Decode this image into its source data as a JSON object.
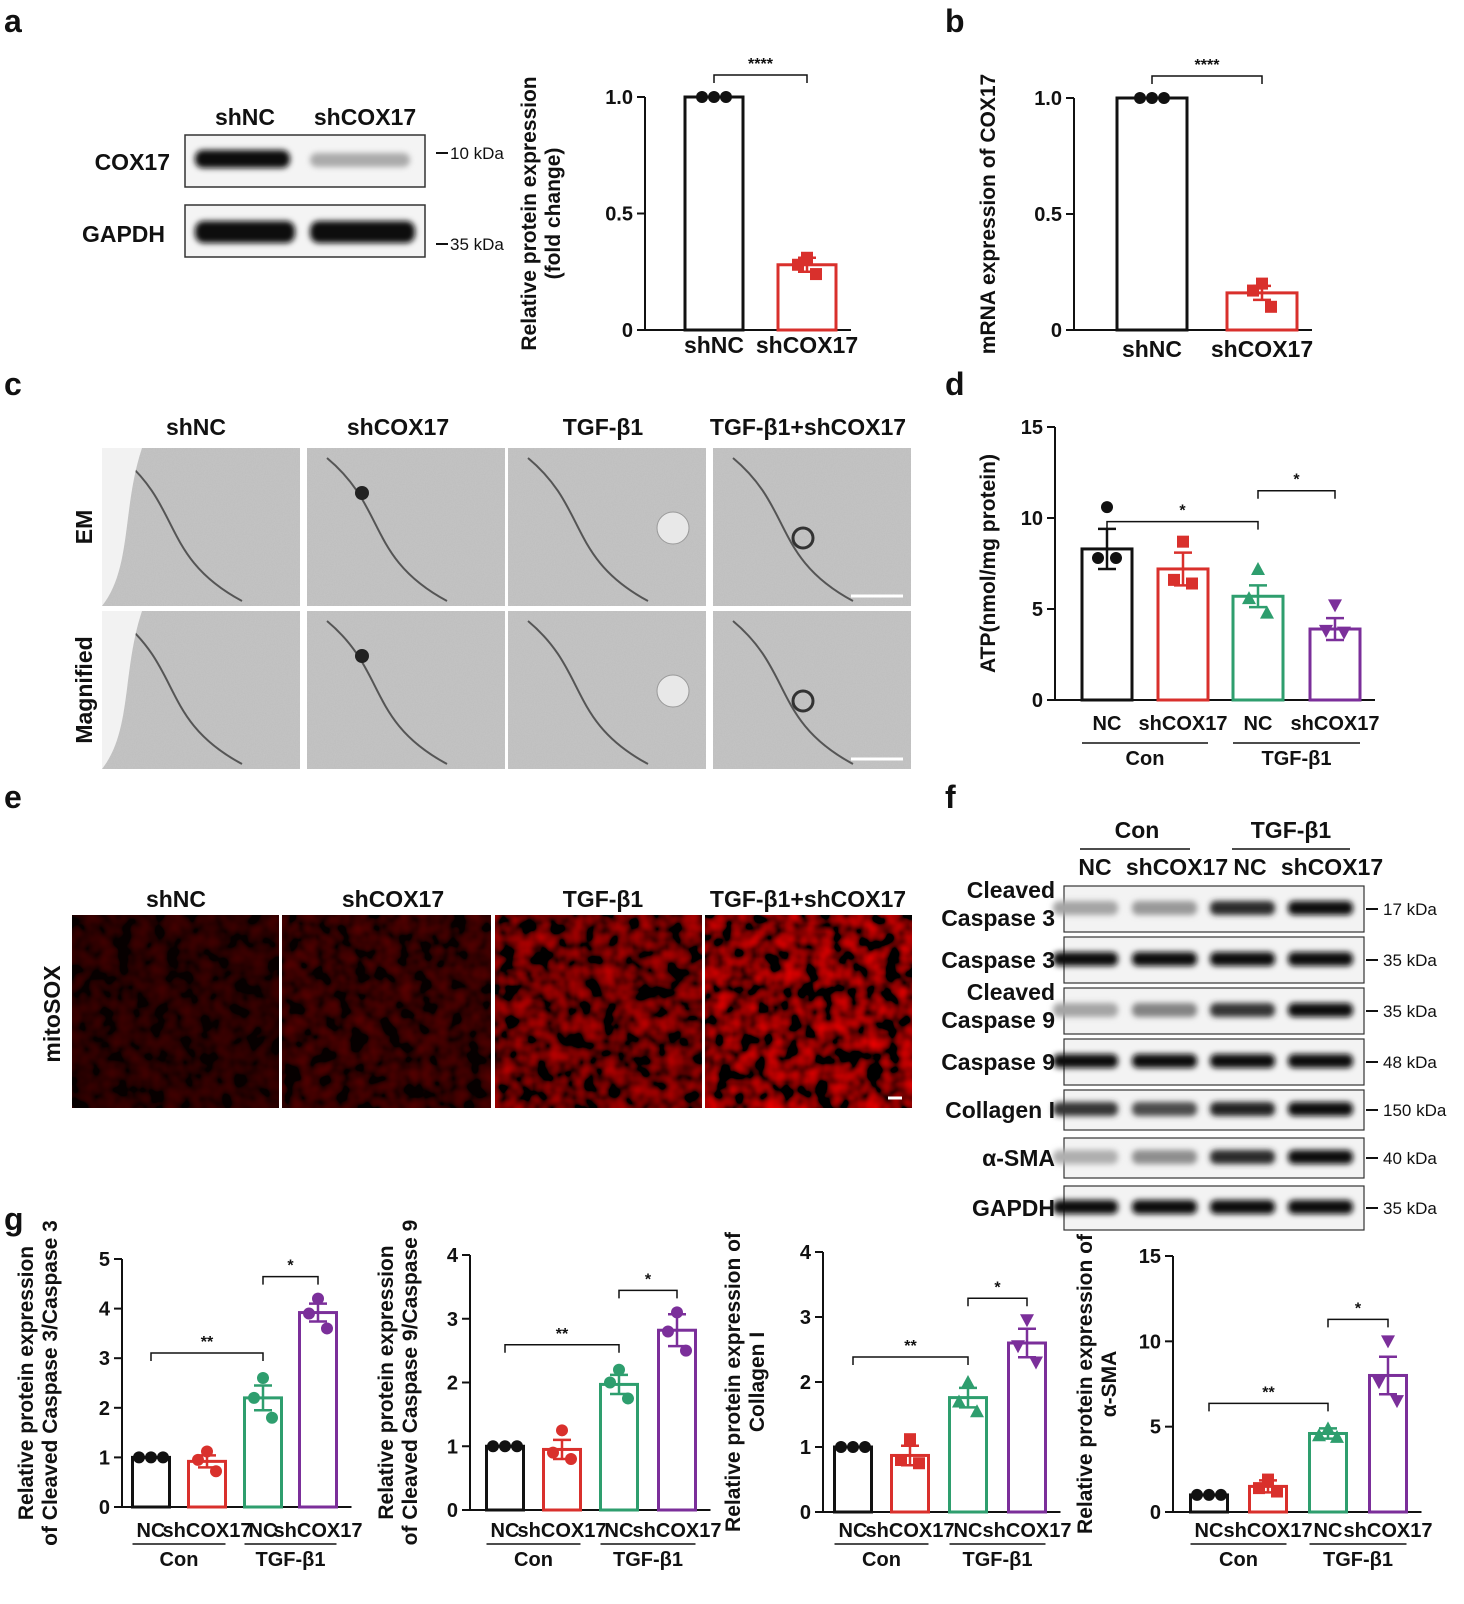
{
  "panel_labels": [
    "a",
    "b",
    "c",
    "d",
    "e",
    "f",
    "g"
  ],
  "colors": {
    "NC": "#111111",
    "shCOX17": "#d9302c",
    "TGF_NC": "#2e9e6e",
    "TGF_shCOX17": "#7b2f9a"
  },
  "panel_a": {
    "lanes": [
      "shNC",
      "shCOX17"
    ],
    "rows": [
      "COX17",
      "GAPDH"
    ],
    "markers": [
      "10 kDa",
      "35 kDa"
    ]
  },
  "panel_c": {
    "columns": [
      "shNC",
      "shCOX17",
      "TGF-β1",
      "TGF-β1+shCOX17"
    ],
    "rows": [
      "EM",
      "Magnified"
    ]
  },
  "panel_e": {
    "columns": [
      "shNC",
      "shCOX17",
      "TGF-β1",
      "TGF-β1+shCOX17"
    ],
    "row": "mitoSOX"
  },
  "panel_f": {
    "groups": [
      "Con",
      "TGF-β1"
    ],
    "lanes": [
      "NC",
      "shCOX17",
      "NC",
      "shCOX17"
    ],
    "rows": [
      {
        "label": [
          "Cleaved",
          "Caspase 3"
        ],
        "marker": "17 kDa"
      },
      {
        "label": [
          "Caspase 3"
        ],
        "marker": "35 kDa"
      },
      {
        "label": [
          "Cleaved",
          "Caspase 9"
        ],
        "marker": "35 kDa"
      },
      {
        "label": [
          "Caspase 9"
        ],
        "marker": "48 kDa"
      },
      {
        "label": [
          "Collagen I"
        ],
        "marker": "150 kDa"
      },
      {
        "label": [
          "α-SMA"
        ],
        "marker": "40 kDa"
      },
      {
        "label": [
          "GAPDH"
        ],
        "marker": "35 kDa"
      }
    ]
  },
  "chart_data": [
    {
      "id": "a",
      "type": "bar",
      "categories": [
        "shNC",
        "shCOX17"
      ],
      "values": [
        1.0,
        0.28
      ],
      "errors": [
        0.0,
        0.03
      ],
      "points": [
        [
          1.0,
          1.0,
          1.0
        ],
        [
          0.31,
          0.28,
          0.24
        ]
      ],
      "ylabel": [
        "Relative protein expression",
        "(fold change)"
      ],
      "ylim": [
        0,
        1.0
      ],
      "yticks": [
        "0",
        "0.5",
        "1.0"
      ],
      "sig": [
        {
          "pair": [
            0,
            1
          ],
          "label": "****"
        }
      ]
    },
    {
      "id": "b",
      "type": "bar",
      "categories": [
        "shNC",
        "shCOX17"
      ],
      "values": [
        1.0,
        0.16
      ],
      "errors": [
        0.0,
        0.03
      ],
      "points": [
        [
          1.0,
          1.0,
          1.0
        ],
        [
          0.2,
          0.17,
          0.1
        ]
      ],
      "ylabel": [
        "mRNA expression of COX17"
      ],
      "ylim": [
        0,
        1.0
      ],
      "yticks": [
        "0",
        "0.5",
        "1.0"
      ],
      "sig": [
        {
          "pair": [
            0,
            1
          ],
          "label": "****"
        }
      ]
    },
    {
      "id": "d",
      "type": "bar",
      "categories": [
        "NC",
        "shCOX17",
        "NC",
        "shCOX17"
      ],
      "groups": [
        "Con",
        "TGF-β1"
      ],
      "values": [
        8.3,
        7.2,
        5.7,
        3.9
      ],
      "errors": [
        1.1,
        0.9,
        0.6,
        0.6
      ],
      "points": [
        [
          10.6,
          7.8,
          7.8
        ],
        [
          8.7,
          6.6,
          6.4
        ],
        [
          7.2,
          5.6,
          4.8
        ],
        [
          5.2,
          3.8,
          3.7
        ]
      ],
      "ylabel": [
        "ATP(nmol/mg protein)"
      ],
      "ylim": [
        0,
        15
      ],
      "yticks": [
        "0",
        "5",
        "10",
        "15"
      ],
      "sig": [
        {
          "pair": [
            0,
            2
          ],
          "label": "*"
        },
        {
          "pair": [
            2,
            3
          ],
          "label": "*"
        }
      ]
    },
    {
      "id": "g1",
      "type": "bar",
      "categories": [
        "NC",
        "shCOX17",
        "NC",
        "shCOX17"
      ],
      "groups": [
        "Con",
        "TGF-β1"
      ],
      "values": [
        1.0,
        0.92,
        2.2,
        3.92
      ],
      "errors": [
        0.0,
        0.12,
        0.25,
        0.18
      ],
      "points": [
        [
          1.0,
          1.0,
          1.0
        ],
        [
          1.12,
          0.95,
          0.72
        ],
        [
          2.6,
          2.2,
          1.8
        ],
        [
          4.2,
          3.9,
          3.6
        ]
      ],
      "ylabel": [
        "Relative protein expression",
        "of Cleaved Caspase 3/Caspase 3"
      ],
      "ylim": [
        0,
        5
      ],
      "yticks": [
        "0",
        "1",
        "2",
        "3",
        "4",
        "5"
      ],
      "sig": [
        {
          "pair": [
            0,
            2
          ],
          "label": "**"
        },
        {
          "pair": [
            2,
            3
          ],
          "label": "*"
        }
      ]
    },
    {
      "id": "g2",
      "type": "bar",
      "categories": [
        "NC",
        "shCOX17",
        "NC",
        "shCOX17"
      ],
      "groups": [
        "Con",
        "TGF-β1"
      ],
      "values": [
        1.0,
        0.95,
        1.97,
        2.82
      ],
      "errors": [
        0.0,
        0.15,
        0.15,
        0.25
      ],
      "points": [
        [
          1.0,
          1.0,
          1.0
        ],
        [
          1.25,
          0.9,
          0.8
        ],
        [
          2.2,
          2.0,
          1.75
        ],
        [
          3.1,
          2.8,
          2.5
        ]
      ],
      "ylabel": [
        "Relative protein expression",
        "of Cleaved Caspase 9/Caspase 9"
      ],
      "ylim": [
        0,
        4
      ],
      "yticks": [
        "0",
        "1",
        "2",
        "3",
        "4"
      ],
      "sig": [
        {
          "pair": [
            0,
            2
          ],
          "label": "**"
        },
        {
          "pair": [
            2,
            3
          ],
          "label": "*"
        }
      ]
    },
    {
      "id": "g3",
      "type": "bar",
      "categories": [
        "NC",
        "shCOX17",
        "NC",
        "shCOX17"
      ],
      "groups": [
        "Con",
        "TGF-β1"
      ],
      "values": [
        1.0,
        0.87,
        1.76,
        2.6
      ],
      "errors": [
        0.0,
        0.15,
        0.15,
        0.22
      ],
      "points": [
        [
          1.0,
          1.0,
          1.0
        ],
        [
          1.12,
          0.8,
          0.75
        ],
        [
          2.0,
          1.7,
          1.55
        ],
        [
          2.95,
          2.55,
          2.3
        ]
      ],
      "ylabel": [
        "Relative protein expression of",
        "Collagen I"
      ],
      "ylim": [
        0,
        4
      ],
      "yticks": [
        "0",
        "1",
        "2",
        "3",
        "4"
      ],
      "sig": [
        {
          "pair": [
            0,
            2
          ],
          "label": "**"
        },
        {
          "pair": [
            2,
            3
          ],
          "label": "*"
        }
      ]
    },
    {
      "id": "g4",
      "type": "bar",
      "categories": [
        "NC",
        "shCOX17",
        "NC",
        "shCOX17"
      ],
      "groups": [
        "Con",
        "TGF-β1"
      ],
      "values": [
        1.0,
        1.5,
        4.6,
        8.0
      ],
      "errors": [
        0.0,
        0.35,
        0.3,
        1.1
      ],
      "points": [
        [
          1.0,
          1.0,
          1.0
        ],
        [
          1.9,
          1.4,
          1.2
        ],
        [
          4.9,
          4.5,
          4.4
        ],
        [
          10.0,
          7.6,
          6.5
        ]
      ],
      "ylabel": [
        "Relative protein expression of",
        "α-SMA"
      ],
      "ylim": [
        0,
        15
      ],
      "yticks": [
        "0",
        "5",
        "10",
        "15"
      ],
      "sig": [
        {
          "pair": [
            0,
            2
          ],
          "label": "**"
        },
        {
          "pair": [
            2,
            3
          ],
          "label": "*"
        }
      ]
    }
  ]
}
